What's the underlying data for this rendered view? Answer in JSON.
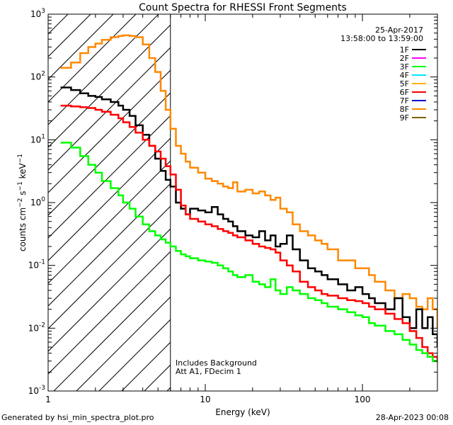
{
  "chart_data": {
    "type": "line",
    "title": "Count Spectra for RHESSI Front Segments",
    "xlabel": "Energy (keV)",
    "ylabel": "counts cm^-2 s^-1 keV^-1",
    "xscale": "log",
    "yscale": "log",
    "xlim": [
      1,
      300
    ],
    "ylim": [
      0.001,
      1000
    ],
    "x_ticks": [
      {
        "value": 1,
        "label": "1"
      },
      {
        "value": 10,
        "label": "10"
      },
      {
        "value": 100,
        "label": "100"
      }
    ],
    "y_ticks": [
      {
        "value": 0.001,
        "base": "10",
        "exp": "-3"
      },
      {
        "value": 0.01,
        "base": "10",
        "exp": "-2"
      },
      {
        "value": 0.1,
        "base": "10",
        "exp": "-1"
      },
      {
        "value": 1,
        "base": "10",
        "exp": "0"
      },
      {
        "value": 10,
        "base": "10",
        "exp": "1"
      },
      {
        "value": 100,
        "base": "10",
        "exp": "2"
      },
      {
        "value": 1000,
        "base": "10",
        "exp": "3"
      }
    ],
    "attenuator_edge_kev": 6,
    "annotations": {
      "date": "25-Apr-2017",
      "time_range": "13:58:00 to 13:59:00",
      "note1": "Includes Background",
      "note2": "Att A1, FDecim 1"
    },
    "legend": [
      {
        "name": "1F",
        "color": "#000000"
      },
      {
        "name": "2F",
        "color": "#ff00ff"
      },
      {
        "name": "3F",
        "color": "#00ff00"
      },
      {
        "name": "4F",
        "color": "#00e5ff"
      },
      {
        "name": "5F",
        "color": "#ffb000"
      },
      {
        "name": "6F",
        "color": "#ff0000"
      },
      {
        "name": "7F",
        "color": "#0000cc"
      },
      {
        "name": "8F",
        "color": "#ff8800"
      },
      {
        "name": "9F",
        "color": "#806000"
      }
    ],
    "series": [
      {
        "name": "8F",
        "color": "#ff8800",
        "x": [
          1.2,
          1.4,
          1.6,
          1.8,
          2.0,
          2.2,
          2.5,
          2.8,
          3.0,
          3.3,
          3.6,
          4.0,
          4.4,
          4.8,
          5.2,
          5.6,
          6.0,
          6.5,
          7.0,
          7.5,
          8,
          9,
          10,
          11,
          12,
          13,
          14,
          15,
          16,
          18,
          20,
          22,
          24,
          26,
          28,
          30,
          33,
          36,
          40,
          45,
          50,
          55,
          60,
          70,
          80,
          90,
          100,
          110,
          120,
          140,
          160,
          180,
          200,
          220,
          240,
          260,
          280,
          300
        ],
        "y": [
          140,
          170,
          240,
          300,
          340,
          390,
          430,
          450,
          460,
          450,
          430,
          330,
          200,
          120,
          60,
          30,
          15,
          8,
          6,
          4.5,
          3.6,
          3.0,
          2.4,
          2.2,
          2.0,
          1.8,
          1.7,
          2.1,
          1.5,
          1.6,
          1.4,
          1.5,
          1.3,
          1.1,
          1.2,
          0.8,
          0.7,
          0.45,
          0.35,
          0.3,
          0.25,
          0.22,
          0.18,
          0.12,
          0.12,
          0.09,
          0.09,
          0.07,
          0.055,
          0.04,
          0.03,
          0.035,
          0.03,
          0.022,
          0.02,
          0.03,
          0.02,
          0.01
        ]
      },
      {
        "name": "1F",
        "color": "#000000",
        "x": [
          1.2,
          1.4,
          1.6,
          1.8,
          2.0,
          2.2,
          2.5,
          2.8,
          3.0,
          3.3,
          3.6,
          4.0,
          4.4,
          4.8,
          5.2,
          5.6,
          6.0,
          6.5,
          7.0,
          7.5,
          8,
          9,
          10,
          11,
          12,
          13,
          14,
          15,
          16,
          18,
          20,
          22,
          24,
          26,
          28,
          30,
          33,
          36,
          40,
          45,
          50,
          55,
          60,
          70,
          80,
          90,
          100,
          110,
          120,
          140,
          160,
          180,
          200,
          220,
          240,
          260,
          280,
          300
        ],
        "y": [
          68,
          62,
          55,
          50,
          48,
          44,
          40,
          35,
          30,
          24,
          17,
          12,
          8,
          5,
          3.2,
          2.3,
          1.8,
          1.0,
          0.8,
          0.65,
          0.8,
          0.75,
          0.7,
          0.85,
          0.65,
          0.55,
          0.5,
          0.42,
          0.35,
          0.3,
          0.28,
          0.35,
          0.25,
          0.3,
          0.2,
          0.22,
          0.3,
          0.18,
          0.12,
          0.09,
          0.08,
          0.07,
          0.06,
          0.05,
          0.04,
          0.045,
          0.035,
          0.03,
          0.025,
          0.02,
          0.03,
          0.015,
          0.01,
          0.02,
          0.01,
          0.015,
          0.008,
          0.005
        ]
      },
      {
        "name": "6F",
        "color": "#ff0000",
        "x": [
          1.2,
          1.4,
          1.6,
          1.8,
          2.0,
          2.2,
          2.5,
          2.8,
          3.0,
          3.3,
          3.6,
          4.0,
          4.4,
          4.8,
          5.2,
          5.6,
          6.0,
          6.5,
          7.0,
          7.5,
          8,
          9,
          10,
          11,
          12,
          13,
          14,
          15,
          16,
          18,
          20,
          22,
          24,
          26,
          28,
          30,
          33,
          36,
          40,
          45,
          50,
          55,
          60,
          70,
          80,
          90,
          100,
          110,
          120,
          140,
          160,
          180,
          200,
          220,
          240,
          260,
          280,
          300
        ],
        "y": [
          35,
          34,
          33,
          32,
          30,
          28,
          25,
          22,
          19,
          16,
          13,
          10,
          8,
          6.5,
          5,
          3.8,
          2.8,
          1.6,
          0.9,
          0.65,
          0.55,
          0.5,
          0.45,
          0.42,
          0.38,
          0.35,
          0.33,
          0.3,
          0.28,
          0.25,
          0.22,
          0.2,
          0.19,
          0.18,
          0.16,
          0.12,
          0.1,
          0.08,
          0.055,
          0.045,
          0.04,
          0.035,
          0.033,
          0.03,
          0.028,
          0.027,
          0.025,
          0.022,
          0.02,
          0.017,
          0.014,
          0.012,
          0.009,
          0.007,
          0.005,
          0.004,
          0.0035,
          0.003
        ]
      },
      {
        "name": "3F",
        "color": "#00ff00",
        "x": [
          1.2,
          1.4,
          1.6,
          1.8,
          2.0,
          2.2,
          2.5,
          2.8,
          3.0,
          3.3,
          3.6,
          4.0,
          4.4,
          4.8,
          5.2,
          5.6,
          6.0,
          6.5,
          7.0,
          7.5,
          8,
          9,
          10,
          11,
          12,
          13,
          14,
          15,
          16,
          18,
          20,
          22,
          24,
          26,
          28,
          30,
          33,
          36,
          40,
          45,
          50,
          55,
          60,
          70,
          80,
          90,
          100,
          110,
          120,
          140,
          160,
          180,
          200,
          220,
          240,
          260,
          280,
          300
        ],
        "y": [
          9,
          7.5,
          5.5,
          4,
          3,
          2.2,
          1.7,
          1.3,
          1.0,
          0.8,
          0.6,
          0.45,
          0.35,
          0.3,
          0.26,
          0.23,
          0.2,
          0.17,
          0.15,
          0.14,
          0.13,
          0.12,
          0.115,
          0.11,
          0.1,
          0.09,
          0.08,
          0.07,
          0.065,
          0.07,
          0.055,
          0.05,
          0.045,
          0.06,
          0.04,
          0.035,
          0.045,
          0.04,
          0.035,
          0.03,
          0.028,
          0.025,
          0.022,
          0.02,
          0.018,
          0.016,
          0.015,
          0.012,
          0.011,
          0.009,
          0.008,
          0.0065,
          0.0055,
          0.0045,
          0.004,
          0.0035,
          0.003,
          0.0028
        ]
      }
    ]
  }
}
